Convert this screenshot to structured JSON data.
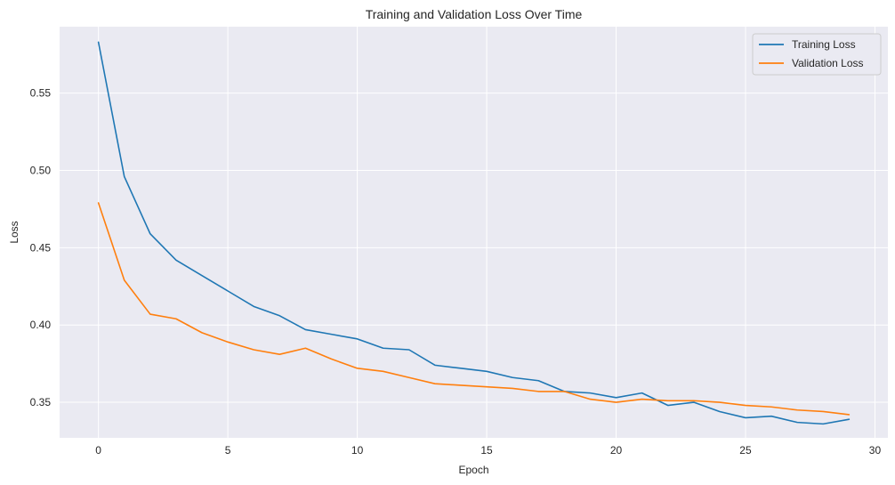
{
  "chart_data": {
    "type": "line",
    "title": "Training and Validation Loss Over Time",
    "xlabel": "Epoch",
    "ylabel": "Loss",
    "xlim": [
      -1.5,
      30.5
    ],
    "ylim": [
      0.327,
      0.593
    ],
    "xticks": [
      0,
      5,
      10,
      15,
      20,
      25,
      30
    ],
    "xtick_labels": [
      "0",
      "5",
      "10",
      "15",
      "20",
      "25",
      "30"
    ],
    "yticks": [
      0.35,
      0.4,
      0.45,
      0.5,
      0.55
    ],
    "ytick_labels": [
      "0.35",
      "0.40",
      "0.45",
      "0.50",
      "0.55"
    ],
    "grid": true,
    "legend_position": "top-right",
    "x": [
      0,
      1,
      2,
      3,
      4,
      5,
      6,
      7,
      8,
      9,
      10,
      11,
      12,
      13,
      14,
      15,
      16,
      17,
      18,
      19,
      20,
      21,
      22,
      23,
      24,
      25,
      26,
      27,
      28,
      29
    ],
    "series": [
      {
        "name": "Training Loss",
        "color": "#1f77b4",
        "values": [
          0.583,
          0.496,
          0.459,
          0.442,
          0.432,
          0.422,
          0.412,
          0.406,
          0.397,
          0.394,
          0.391,
          0.385,
          0.384,
          0.374,
          0.372,
          0.37,
          0.366,
          0.364,
          0.357,
          0.356,
          0.353,
          0.356,
          0.348,
          0.35,
          0.344,
          0.34,
          0.341,
          0.337,
          0.336,
          0.339
        ]
      },
      {
        "name": "Validation Loss",
        "color": "#ff7f0e",
        "values": [
          0.479,
          0.429,
          0.407,
          0.404,
          0.395,
          0.389,
          0.384,
          0.381,
          0.385,
          0.378,
          0.372,
          0.37,
          0.366,
          0.362,
          0.361,
          0.36,
          0.359,
          0.357,
          0.357,
          0.352,
          0.35,
          0.352,
          0.351,
          0.351,
          0.35,
          0.348,
          0.347,
          0.345,
          0.344,
          0.342
        ]
      }
    ]
  }
}
